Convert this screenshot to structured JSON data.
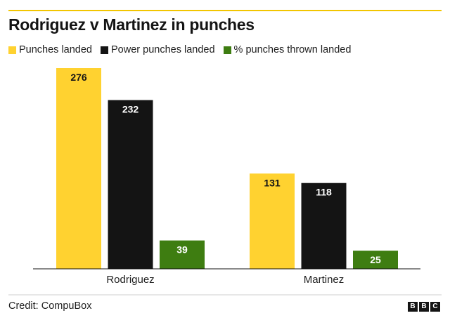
{
  "title": "Rodriguez v Martinez in punches",
  "chart_data": {
    "type": "bar",
    "categories": [
      "Rodriguez",
      "Martinez"
    ],
    "series": [
      {
        "name": "Punches landed",
        "color": "#ffd230",
        "values": [
          276,
          131
        ]
      },
      {
        "name": "Power punches landed",
        "color": "#141414",
        "values": [
          232,
          118
        ]
      },
      {
        "name": "% punches thrown landed",
        "color": "#3e7d11",
        "values": [
          39,
          25
        ]
      }
    ],
    "ylim": [
      0,
      276
    ],
    "grid": false,
    "legend_position": "top-left",
    "value_label_color": {
      "Punches landed": "#141414",
      "Power punches landed": "#ffffff",
      "% punches thrown landed": "#ffffff"
    }
  },
  "credit": "Credit: CompuBox",
  "logo": {
    "letters": [
      "B",
      "B",
      "C"
    ],
    "text": "BBC"
  }
}
